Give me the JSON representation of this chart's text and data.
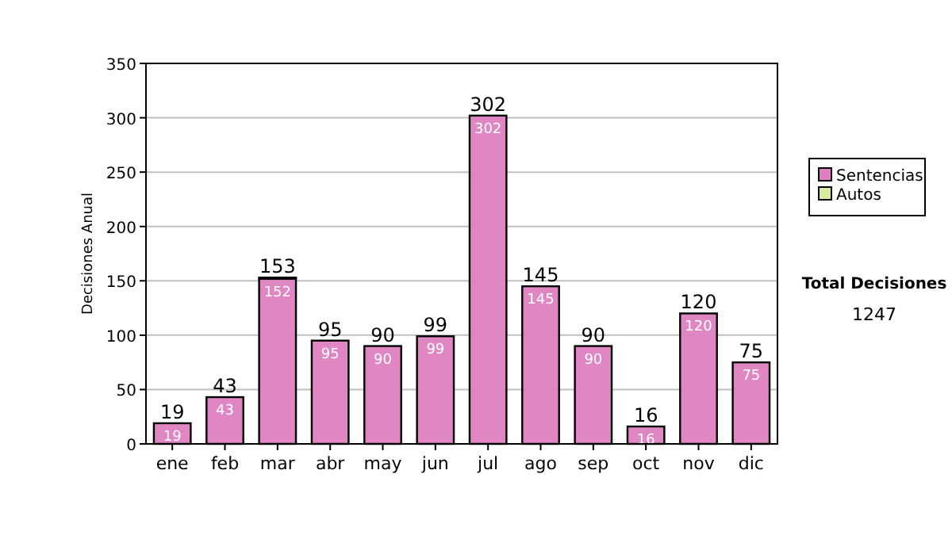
{
  "chart_data": {
    "type": "bar",
    "stacked": true,
    "ylabel": "Decisiones Anual",
    "categories": [
      "ene",
      "feb",
      "mar",
      "abr",
      "may",
      "jun",
      "jul",
      "ago",
      "sep",
      "oct",
      "nov",
      "dic"
    ],
    "series": [
      {
        "name": "Sentencias",
        "color": "#dd7fc0",
        "values": [
          19,
          43,
          152,
          95,
          90,
          99,
          302,
          145,
          90,
          16,
          120,
          75
        ],
        "value_labels": [
          "19",
          "43",
          "152",
          "95",
          "90",
          "99",
          "302",
          "145",
          "90",
          "16",
          "120",
          "75"
        ]
      },
      {
        "name": "Autos",
        "color": "#d4ec9c",
        "values": [
          0,
          0,
          1,
          0,
          0,
          0,
          0,
          0,
          0,
          0,
          0,
          0
        ]
      }
    ],
    "totals": [
      "19",
      "43",
      "153",
      "95",
      "90",
      "99",
      "302",
      "145",
      "90",
      "16",
      "120",
      "75"
    ],
    "ylim": [
      0,
      350
    ],
    "yticks": [
      0,
      50,
      100,
      150,
      200,
      250,
      300,
      350
    ],
    "grid": "y",
    "legend": "right",
    "annotations": [
      "Total Decisiones",
      "1247"
    ]
  }
}
